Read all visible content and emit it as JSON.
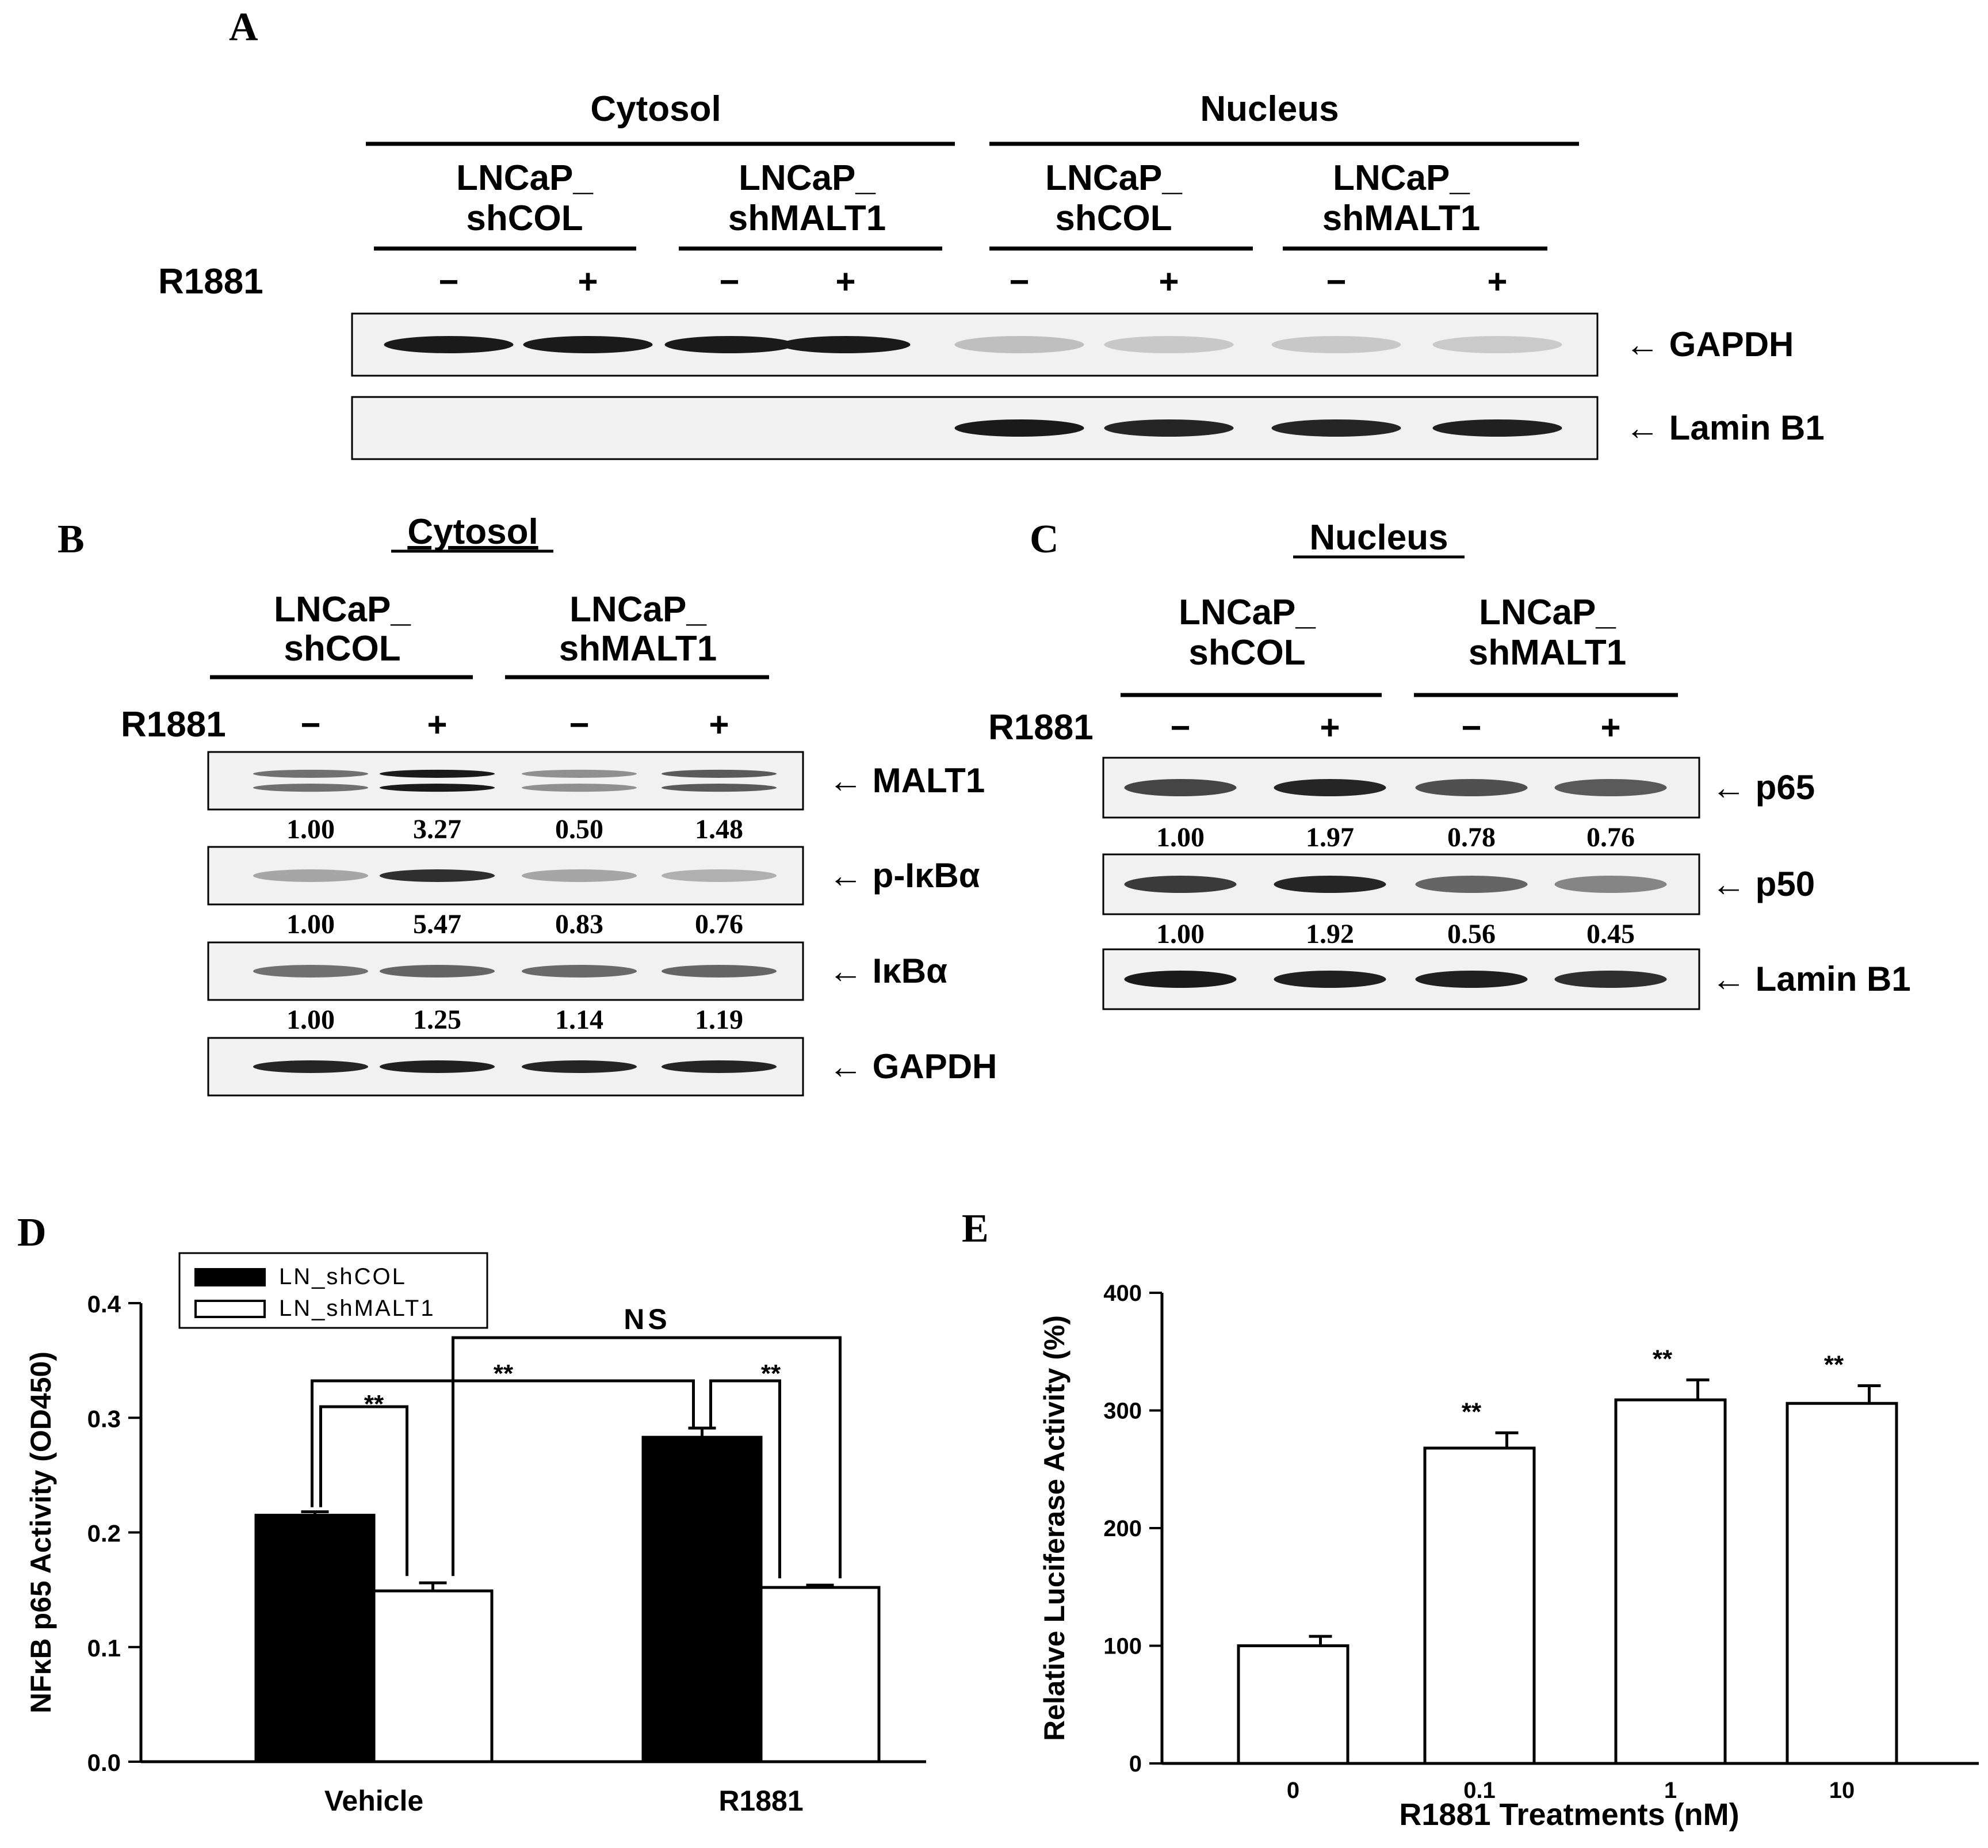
{
  "panels": {
    "A": {
      "letter": "A",
      "fractions": [
        "Cytosol",
        "Nucleus"
      ],
      "groups": [
        {
          "line1": "LNCaP_",
          "line2": "shCOL"
        },
        {
          "line1": "LNCaP_",
          "line2": "shMALT1"
        },
        {
          "line1": "LNCaP_",
          "line2": "shCOL"
        },
        {
          "line1": "LNCaP_",
          "line2": "shMALT1"
        }
      ],
      "treatment": "R1881",
      "signs": [
        "−",
        "+",
        "−",
        "+",
        "−",
        "+",
        "−",
        "+"
      ],
      "blots": [
        {
          "label": "← GAPDH",
          "intensity": [
            0.95,
            0.95,
            0.95,
            0.95,
            0.18,
            0.14,
            0.14,
            0.13
          ]
        },
        {
          "label": "← Lamin B1",
          "intensity": [
            0.0,
            0.0,
            0.0,
            0.0,
            0.95,
            0.9,
            0.9,
            0.92
          ]
        }
      ]
    },
    "B": {
      "letter": "B",
      "title": "Cytosol",
      "groups": [
        {
          "line1": "LNCaP_",
          "line2": "shCOL"
        },
        {
          "line1": "LNCaP_",
          "line2": "shMALT1"
        }
      ],
      "treatment": "R1881",
      "signs": [
        "−",
        "+",
        "−",
        "+"
      ],
      "blots": [
        {
          "label": "← MALT1",
          "values": [
            "1.00",
            "3.27",
            "0.50",
            "1.48"
          ],
          "intensity": [
            0.55,
            0.95,
            0.4,
            0.65
          ]
        },
        {
          "label": "← p-IκBα",
          "values": [
            "1.00",
            "5.47",
            "0.83",
            "0.76"
          ],
          "intensity": [
            0.3,
            0.85,
            0.3,
            0.25
          ]
        },
        {
          "label": "← IκBα",
          "values": [
            "1.00",
            "1.25",
            "1.14",
            "1.19"
          ],
          "intensity": [
            0.55,
            0.6,
            0.58,
            0.6
          ]
        },
        {
          "label": "← GAPDH",
          "values": [],
          "intensity": [
            0.9,
            0.92,
            0.9,
            0.9
          ]
        }
      ]
    },
    "C": {
      "letter": "C",
      "title": "Nucleus",
      "groups": [
        {
          "line1": "LNCaP_",
          "line2": "shCOL"
        },
        {
          "line1": "LNCaP_",
          "line2": "shMALT1"
        }
      ],
      "treatment": "R1881",
      "signs": [
        "−",
        "+",
        "−",
        "+"
      ],
      "blots": [
        {
          "label": "← p65",
          "values": [
            "1.00",
            "1.97",
            "0.78",
            "0.76"
          ],
          "intensity": [
            0.75,
            0.9,
            0.7,
            0.65
          ]
        },
        {
          "label": "← p50",
          "values": [
            "1.00",
            "1.92",
            "0.56",
            "0.45"
          ],
          "intensity": [
            0.8,
            0.9,
            0.6,
            0.45
          ]
        },
        {
          "label": "← Lamin B1",
          "values": [],
          "intensity": [
            0.95,
            0.92,
            0.92,
            0.85
          ]
        }
      ]
    },
    "D": {
      "letter": "D",
      "stats": {
        "ns": "NS",
        "sig1": "**",
        "sig2": "**",
        "sig3": "**"
      }
    },
    "E": {
      "letter": "E"
    }
  },
  "chart_data": [
    {
      "type": "bar",
      "panel": "D",
      "categories": [
        "Vehicle",
        "R1881"
      ],
      "series": [
        {
          "name": "LN_shCOL",
          "values": [
            0.215,
            0.283
          ],
          "errors": [
            0.003,
            0.008
          ],
          "color": "#000000"
        },
        {
          "name": "LN_shMALT1",
          "values": [
            0.149,
            0.152
          ],
          "errors": [
            0.007,
            0.002
          ],
          "color": "#ffffff"
        }
      ],
      "ylabel": "NFκB p65 Activity (OD450)",
      "xlabel": "",
      "ylim": [
        0,
        0.4
      ],
      "yticks": [
        "0.0",
        "0.1",
        "0.2",
        "0.3",
        "0.4"
      ],
      "legend": "top-left",
      "grid": false
    },
    {
      "type": "bar",
      "panel": "E",
      "categories": [
        "0",
        "0.1",
        "1",
        "10"
      ],
      "values": [
        100,
        268,
        309,
        306
      ],
      "errors": [
        8,
        13,
        17,
        15
      ],
      "annotations": [
        "",
        "**",
        "**",
        "**"
      ],
      "xlabel": "R1881 Treatments (nM)",
      "ylabel": "Relative Luciferase Activity (%)",
      "ylim": [
        0,
        400
      ],
      "yticks": [
        "0",
        "100",
        "200",
        "300",
        "400"
      ],
      "grid": false
    }
  ]
}
